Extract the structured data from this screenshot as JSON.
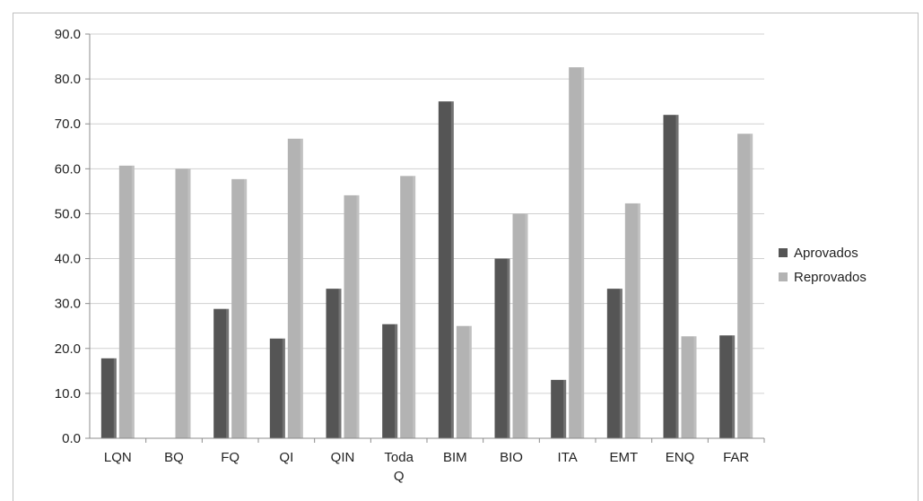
{
  "chart_data": {
    "type": "bar",
    "categories": [
      [
        "LQN"
      ],
      [
        "BQ"
      ],
      [
        "FQ"
      ],
      [
        "QI"
      ],
      [
        "QIN"
      ],
      [
        "Toda",
        "Q"
      ],
      [
        "BIM"
      ],
      [
        "BIO"
      ],
      [
        "ITA"
      ],
      [
        "EMT"
      ],
      [
        "ENQ"
      ],
      [
        "FAR"
      ]
    ],
    "series": [
      {
        "name": "Aprovados",
        "color": "#555555",
        "values": [
          17.8,
          0,
          28.8,
          22.2,
          33.3,
          25.4,
          75.0,
          40.0,
          13.0,
          33.3,
          72.0,
          22.9
        ]
      },
      {
        "name": "Reprovados",
        "color": "#b3b3b3",
        "values": [
          60.7,
          60.0,
          57.7,
          66.7,
          54.1,
          58.4,
          25.0,
          50.0,
          82.6,
          52.3,
          22.7,
          67.8
        ]
      }
    ],
    "ylim": [
      0,
      90
    ],
    "yticks": [
      "0.0",
      "10.0",
      "20.0",
      "30.0",
      "40.0",
      "50.0",
      "60.0",
      "70.0",
      "80.0",
      "90.0"
    ],
    "grid": true,
    "legend_position": "right"
  }
}
